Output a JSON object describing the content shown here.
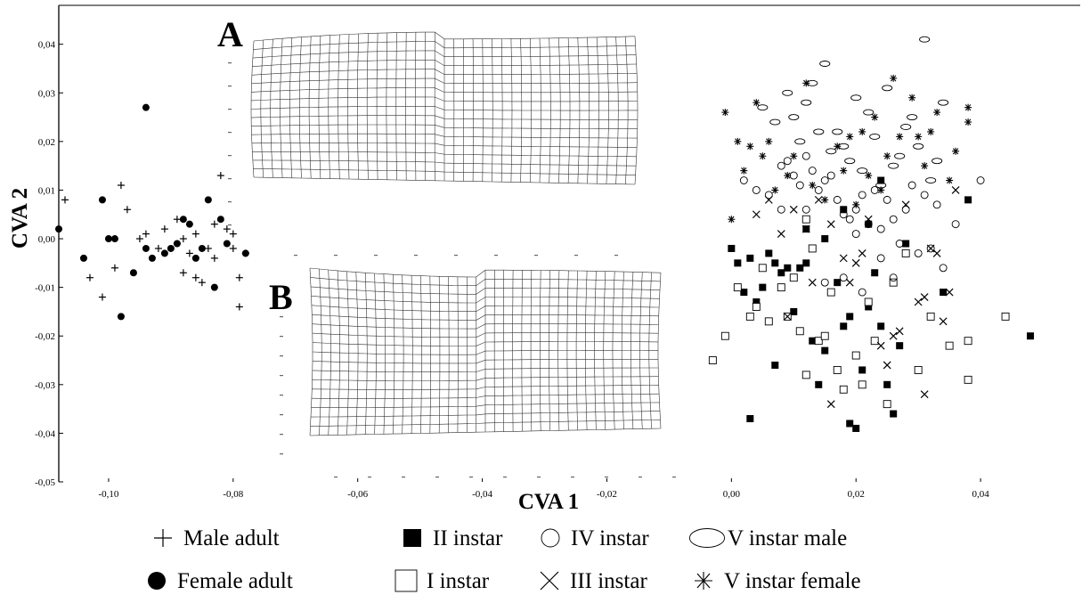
{
  "chart_data": {
    "type": "scatter",
    "title": "",
    "xlabel": "CVA 1",
    "ylabel": "CVA 2",
    "xlim": [
      -0.108,
      0.056
    ],
    "ylim": [
      -0.05,
      0.048
    ],
    "x_ticks": [
      "-0,10",
      "-0,08",
      "-0,06",
      "-0,04",
      "-0,02",
      "0,00",
      "0,02",
      "0,04"
    ],
    "x_tick_values": [
      -0.1,
      -0.08,
      -0.06,
      -0.04,
      -0.02,
      0.0,
      0.02,
      0.04
    ],
    "y_ticks": [
      "0,04",
      "0,03",
      "0,02",
      "0,01",
      "0,00",
      "-0,01",
      "-0,02",
      "-0,03",
      "-0,04",
      "-0,05"
    ],
    "y_tick_values": [
      0.04,
      0.03,
      0.02,
      0.01,
      0.0,
      -0.01,
      -0.02,
      -0.03,
      -0.04,
      -0.05
    ],
    "grid": false,
    "legend_position": "bottom",
    "insets": [
      {
        "label": "A",
        "description_key": "deformation-grid-positive"
      },
      {
        "label": "B",
        "description_key": "deformation-grid-negative"
      }
    ],
    "series": [
      {
        "name": "Male adult",
        "marker": "plus",
        "points": [
          [
            -0.107,
            0.008
          ],
          [
            -0.098,
            0.011
          ],
          [
            -0.097,
            0.006
          ],
          [
            -0.095,
            0.0
          ],
          [
            -0.092,
            -0.002
          ],
          [
            -0.094,
            0.001
          ],
          [
            -0.091,
            0.002
          ],
          [
            -0.089,
            -0.001
          ],
          [
            -0.088,
            0.0
          ],
          [
            -0.087,
            -0.003
          ],
          [
            -0.086,
            -0.008
          ],
          [
            -0.085,
            -0.009
          ],
          [
            -0.084,
            -0.002
          ],
          [
            -0.083,
            0.003
          ],
          [
            -0.082,
            0.013
          ],
          [
            -0.081,
            0.002
          ],
          [
            -0.08,
            -0.002
          ],
          [
            -0.079,
            -0.008
          ],
          [
            -0.079,
            -0.014
          ],
          [
            -0.078,
            -0.003
          ],
          [
            -0.101,
            -0.012
          ],
          [
            -0.103,
            -0.008
          ],
          [
            -0.099,
            -0.006
          ],
          [
            -0.089,
            0.004
          ],
          [
            -0.086,
            0.001
          ],
          [
            -0.083,
            -0.004
          ],
          [
            -0.088,
            -0.007
          ],
          [
            -0.08,
            0.001
          ]
        ]
      },
      {
        "name": "Female adult",
        "marker": "filled-circle",
        "points": [
          [
            -0.108,
            0.002
          ],
          [
            -0.104,
            -0.004
          ],
          [
            -0.101,
            0.008
          ],
          [
            -0.099,
            0.0
          ],
          [
            -0.098,
            -0.016
          ],
          [
            -0.096,
            -0.007
          ],
          [
            -0.094,
            0.027
          ],
          [
            -0.094,
            -0.002
          ],
          [
            -0.093,
            -0.004
          ],
          [
            -0.091,
            -0.003
          ],
          [
            -0.09,
            -0.002
          ],
          [
            -0.088,
            0.004
          ],
          [
            -0.087,
            0.003
          ],
          [
            -0.086,
            -0.004
          ],
          [
            -0.085,
            -0.002
          ],
          [
            -0.084,
            0.008
          ],
          [
            -0.083,
            -0.01
          ],
          [
            -0.082,
            0.004
          ],
          [
            -0.081,
            -0.001
          ],
          [
            -0.078,
            -0.003
          ],
          [
            -0.1,
            0.0
          ],
          [
            -0.089,
            -0.001
          ]
        ]
      },
      {
        "name": "II instar",
        "marker": "filled-square",
        "points": [
          [
            0.0,
            -0.002
          ],
          [
            0.001,
            -0.005
          ],
          [
            0.002,
            -0.011
          ],
          [
            0.003,
            -0.004
          ],
          [
            0.004,
            -0.013
          ],
          [
            0.005,
            -0.01
          ],
          [
            0.006,
            -0.003
          ],
          [
            0.007,
            -0.005
          ],
          [
            0.008,
            -0.007
          ],
          [
            0.009,
            -0.006
          ],
          [
            0.01,
            -0.015
          ],
          [
            0.011,
            -0.006
          ],
          [
            0.012,
            -0.005
          ],
          [
            0.013,
            -0.021
          ],
          [
            0.014,
            -0.03
          ],
          [
            0.015,
            -0.023
          ],
          [
            0.016,
            -0.011
          ],
          [
            0.017,
            -0.009
          ],
          [
            0.018,
            -0.018
          ],
          [
            0.019,
            -0.016
          ],
          [
            0.019,
            -0.038
          ],
          [
            0.02,
            -0.039
          ],
          [
            0.021,
            -0.027
          ],
          [
            0.022,
            -0.014
          ],
          [
            0.023,
            -0.007
          ],
          [
            0.024,
            -0.018
          ],
          [
            0.025,
            -0.03
          ],
          [
            0.026,
            -0.036
          ],
          [
            0.027,
            -0.022
          ],
          [
            0.028,
            -0.001
          ],
          [
            0.012,
            0.002
          ],
          [
            0.015,
            0.0
          ],
          [
            0.018,
            0.006
          ],
          [
            0.022,
            0.003
          ],
          [
            0.024,
            0.012
          ],
          [
            0.038,
            0.008
          ],
          [
            0.048,
            -0.02
          ],
          [
            0.034,
            -0.011
          ],
          [
            0.007,
            -0.026
          ],
          [
            0.011,
            -0.019
          ],
          [
            0.003,
            -0.037
          ]
        ]
      },
      {
        "name": "I instar",
        "marker": "open-square",
        "points": [
          [
            -0.003,
            -0.025
          ],
          [
            0.001,
            -0.01
          ],
          [
            0.003,
            -0.016
          ],
          [
            0.005,
            -0.006
          ],
          [
            0.006,
            -0.017
          ],
          [
            0.008,
            -0.01
          ],
          [
            0.009,
            -0.016
          ],
          [
            0.01,
            -0.008
          ],
          [
            0.011,
            -0.019
          ],
          [
            0.012,
            -0.028
          ],
          [
            0.013,
            -0.002
          ],
          [
            0.014,
            -0.021
          ],
          [
            0.015,
            -0.02
          ],
          [
            0.016,
            -0.011
          ],
          [
            0.017,
            -0.027
          ],
          [
            0.018,
            -0.031
          ],
          [
            0.02,
            -0.024
          ],
          [
            0.021,
            -0.03
          ],
          [
            0.022,
            -0.013
          ],
          [
            0.023,
            -0.021
          ],
          [
            0.025,
            -0.034
          ],
          [
            0.026,
            -0.009
          ],
          [
            0.028,
            -0.003
          ],
          [
            0.03,
            -0.027
          ],
          [
            0.032,
            -0.016
          ],
          [
            0.035,
            -0.022
          ],
          [
            0.038,
            -0.021
          ],
          [
            0.038,
            -0.029
          ],
          [
            0.044,
            -0.016
          ],
          [
            -0.001,
            -0.02
          ],
          [
            0.012,
            0.004
          ],
          [
            0.004,
            -0.014
          ]
        ]
      },
      {
        "name": "III instar",
        "marker": "cross",
        "points": [
          [
            0.004,
            0.005
          ],
          [
            0.006,
            0.008
          ],
          [
            0.008,
            0.001
          ],
          [
            0.01,
            0.006
          ],
          [
            0.012,
            0.002
          ],
          [
            0.014,
            0.008
          ],
          [
            0.016,
            0.003
          ],
          [
            0.018,
            -0.004
          ],
          [
            0.019,
            -0.009
          ],
          [
            0.02,
            -0.005
          ],
          [
            0.021,
            -0.003
          ],
          [
            0.022,
            0.004
          ],
          [
            0.024,
            -0.022
          ],
          [
            0.025,
            -0.026
          ],
          [
            0.026,
            -0.02
          ],
          [
            0.027,
            -0.019
          ],
          [
            0.028,
            0.007
          ],
          [
            0.03,
            -0.013
          ],
          [
            0.031,
            -0.012
          ],
          [
            0.032,
            -0.002
          ],
          [
            0.033,
            -0.003
          ],
          [
            0.034,
            -0.017
          ],
          [
            0.036,
            0.01
          ],
          [
            0.031,
            -0.032
          ],
          [
            0.016,
            -0.034
          ],
          [
            0.013,
            -0.009
          ],
          [
            0.009,
            -0.016
          ],
          [
            0.035,
            -0.011
          ]
        ]
      },
      {
        "name": "IV instar",
        "marker": "open-circle",
        "points": [
          [
            0.002,
            0.012
          ],
          [
            0.004,
            0.01
          ],
          [
            0.006,
            0.009
          ],
          [
            0.008,
            0.015
          ],
          [
            0.009,
            0.016
          ],
          [
            0.01,
            0.013
          ],
          [
            0.011,
            0.011
          ],
          [
            0.012,
            0.017
          ],
          [
            0.013,
            0.014
          ],
          [
            0.014,
            0.01
          ],
          [
            0.015,
            0.012
          ],
          [
            0.016,
            0.013
          ],
          [
            0.017,
            0.008
          ],
          [
            0.018,
            0.005
          ],
          [
            0.019,
            0.004
          ],
          [
            0.02,
            0.006
          ],
          [
            0.021,
            0.009
          ],
          [
            0.022,
            0.003
          ],
          [
            0.023,
            0.01
          ],
          [
            0.024,
            0.002
          ],
          [
            0.025,
            0.008
          ],
          [
            0.026,
            0.004
          ],
          [
            0.027,
            -0.001
          ],
          [
            0.028,
            0.006
          ],
          [
            0.029,
            0.011
          ],
          [
            0.03,
            -0.003
          ],
          [
            0.031,
            0.009
          ],
          [
            0.032,
            -0.002
          ],
          [
            0.033,
            0.007
          ],
          [
            0.034,
            -0.006
          ],
          [
            0.036,
            0.003
          ],
          [
            0.04,
            0.012
          ],
          [
            0.015,
            -0.009
          ],
          [
            0.018,
            -0.008
          ],
          [
            0.021,
            -0.011
          ],
          [
            0.024,
            -0.004
          ],
          [
            0.026,
            -0.008
          ],
          [
            0.012,
            0.006
          ],
          [
            0.02,
            0.001
          ],
          [
            0.008,
            0.006
          ]
        ]
      },
      {
        "name": "V instar male",
        "marker": "open-ellipse",
        "points": [
          [
            0.005,
            0.027
          ],
          [
            0.007,
            0.024
          ],
          [
            0.009,
            0.03
          ],
          [
            0.011,
            0.02
          ],
          [
            0.013,
            0.032
          ],
          [
            0.015,
            0.036
          ],
          [
            0.016,
            0.018
          ],
          [
            0.017,
            0.022
          ],
          [
            0.018,
            0.019
          ],
          [
            0.019,
            0.016
          ],
          [
            0.02,
            0.029
          ],
          [
            0.021,
            0.014
          ],
          [
            0.022,
            0.026
          ],
          [
            0.023,
            0.021
          ],
          [
            0.024,
            0.011
          ],
          [
            0.025,
            0.031
          ],
          [
            0.026,
            0.015
          ],
          [
            0.027,
            0.017
          ],
          [
            0.028,
            0.023
          ],
          [
            0.029,
            0.025
          ],
          [
            0.03,
            0.019
          ],
          [
            0.031,
            0.041
          ],
          [
            0.032,
            0.012
          ],
          [
            0.033,
            0.016
          ],
          [
            0.034,
            0.028
          ],
          [
            0.01,
            0.025
          ],
          [
            0.012,
            0.028
          ],
          [
            0.014,
            0.022
          ]
        ]
      },
      {
        "name": "V instar female",
        "marker": "asterisk",
        "points": [
          [
            -0.001,
            0.026
          ],
          [
            0.001,
            0.02
          ],
          [
            0.003,
            0.019
          ],
          [
            0.004,
            0.028
          ],
          [
            0.005,
            0.017
          ],
          [
            0.006,
            0.02
          ],
          [
            0.007,
            0.01
          ],
          [
            0.009,
            0.013
          ],
          [
            0.01,
            0.017
          ],
          [
            0.012,
            0.032
          ],
          [
            0.013,
            0.011
          ],
          [
            0.015,
            0.008
          ],
          [
            0.017,
            0.019
          ],
          [
            0.018,
            0.014
          ],
          [
            0.019,
            0.021
          ],
          [
            0.02,
            0.007
          ],
          [
            0.021,
            0.022
          ],
          [
            0.022,
            0.013
          ],
          [
            0.023,
            0.025
          ],
          [
            0.024,
            0.01
          ],
          [
            0.025,
            0.017
          ],
          [
            0.026,
            0.033
          ],
          [
            0.027,
            0.021
          ],
          [
            0.029,
            0.029
          ],
          [
            0.03,
            0.021
          ],
          [
            0.031,
            0.015
          ],
          [
            0.032,
            0.022
          ],
          [
            0.033,
            0.026
          ],
          [
            0.035,
            0.012
          ],
          [
            0.036,
            0.018
          ],
          [
            0.038,
            0.027
          ],
          [
            0.038,
            0.024
          ],
          [
            0.002,
            0.014
          ],
          [
            0.0,
            0.004
          ]
        ]
      }
    ]
  },
  "legend": [
    {
      "label": "Male adult",
      "marker": "plus"
    },
    {
      "label": "Female adult",
      "marker": "filled-circle"
    },
    {
      "label": "II instar",
      "marker": "filled-square"
    },
    {
      "label": "I instar",
      "marker": "open-square"
    },
    {
      "label": "IV instar",
      "marker": "open-circle"
    },
    {
      "label": "III instar",
      "marker": "cross"
    },
    {
      "label": "V instar male",
      "marker": "open-ellipse"
    },
    {
      "label": "V instar female",
      "marker": "asterisk"
    }
  ]
}
